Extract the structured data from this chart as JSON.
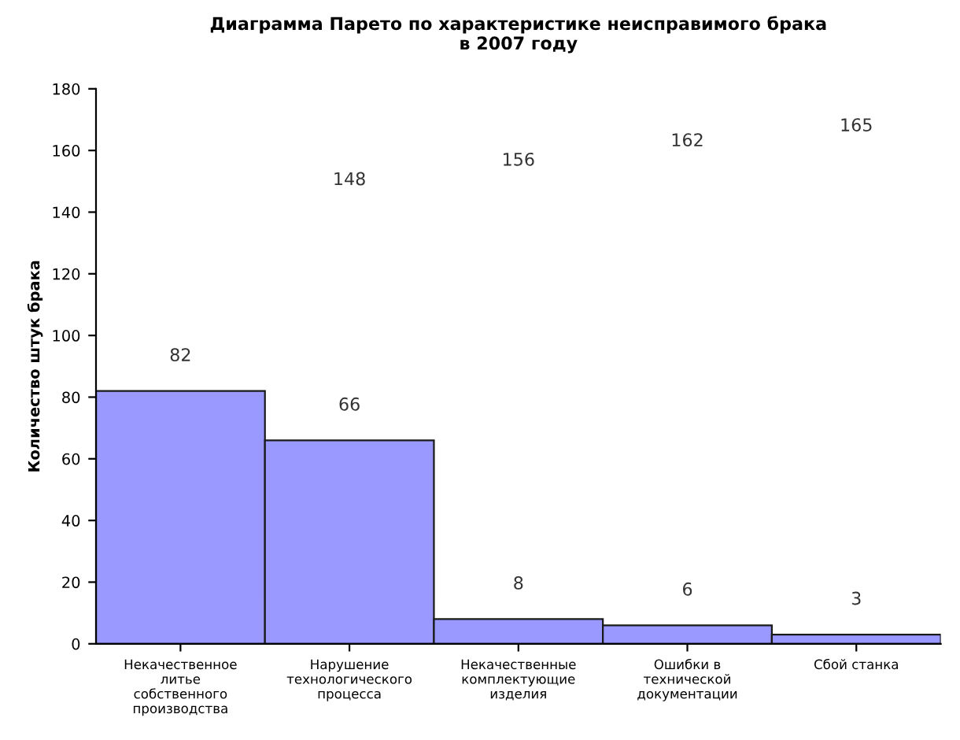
{
  "chart_data": {
    "type": "bar",
    "title": "Диаграмма Парето по характеристике неисправимого брака\nв 2007 году",
    "ylabel": "Количество штук брака",
    "categories": [
      "Некачественное литье собственного производства",
      "Нарушение технологического процесса",
      "Некачественные комплектующие изделия",
      "Ошибки в технической документации",
      "Сбой станка"
    ],
    "values": [
      82,
      66,
      8,
      6,
      3
    ],
    "color": "#9999ff",
    "data_labels": true,
    "annotations": [
      "148",
      "156",
      "162",
      "165"
    ],
    "ylim": [
      0,
      180
    ],
    "yticks": [
      0,
      20,
      40,
      60,
      80,
      100,
      120,
      140,
      160,
      180
    ],
    "grid": false,
    "legend": false
  }
}
